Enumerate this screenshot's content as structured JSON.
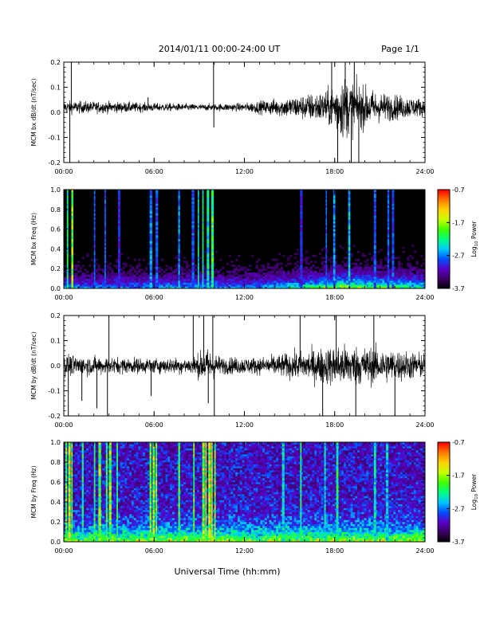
{
  "header": {
    "date_range": "2014/01/11  00:00-24:00 UT",
    "page": "Page 1/1"
  },
  "footer": {
    "xlabel": "Universal Time (hh:mm)"
  },
  "colorbar": {
    "label_prefix": "Log",
    "label_sub": "10",
    "label_suffix": " Power",
    "ticks": [
      "-0.7",
      "-1.7",
      "-2.7",
      "-3.7"
    ],
    "range": [
      -3.7,
      -0.7
    ],
    "colormap": [
      "#000000",
      "#3c0064",
      "#5a00c8",
      "#0050ff",
      "#00c8ff",
      "#00ff80",
      "#40ff00",
      "#c8ff00",
      "#ffd200",
      "#ff7800",
      "#ff0000"
    ]
  },
  "chart_data": [
    {
      "type": "line",
      "ylabel": "MCM bx dB/dt (nT/sec)",
      "xlim": [
        0,
        24
      ],
      "ylim": [
        -0.2,
        0.2
      ],
      "x_ticks": [
        "00:00",
        "06:00",
        "12:00",
        "18:00",
        "24:00"
      ],
      "y_ticks": [
        "-0.2",
        "-0.1",
        "0.0",
        "0.1",
        "0.2"
      ],
      "baseline": 0.02,
      "activity_envelope": [
        {
          "hour": 0,
          "amp": 0.03
        },
        {
          "hour": 4,
          "amp": 0.025
        },
        {
          "hour": 6,
          "amp": 0.02
        },
        {
          "hour": 9,
          "amp": 0.015
        },
        {
          "hour": 12,
          "amp": 0.02
        },
        {
          "hour": 14,
          "amp": 0.04
        },
        {
          "hour": 16,
          "amp": 0.06
        },
        {
          "hour": 17.5,
          "amp": 0.08
        },
        {
          "hour": 18.5,
          "amp": 0.15
        },
        {
          "hour": 19.5,
          "amp": 0.11
        },
        {
          "hour": 21,
          "amp": 0.07
        },
        {
          "hour": 24,
          "amp": 0.04
        }
      ],
      "spikes": [
        {
          "hour": 0.4,
          "value": -0.2
        },
        {
          "hour": 0.5,
          "value": 0.2
        },
        {
          "hour": 5.6,
          "value": 0.06
        },
        {
          "hour": 9.95,
          "value": 0.2
        },
        {
          "hour": 9.97,
          "value": -0.06
        },
        {
          "hour": 17.8,
          "value": 0.2
        },
        {
          "hour": 18.2,
          "value": -0.2
        },
        {
          "hour": 18.7,
          "value": 0.2
        },
        {
          "hour": 19.1,
          "value": -0.2
        },
        {
          "hour": 19.3,
          "value": 0.2
        },
        {
          "hour": 19.6,
          "value": -0.2
        }
      ]
    },
    {
      "type": "heatmap",
      "ylabel": "MCM bx Freq (Hz)",
      "xlim": [
        0,
        24
      ],
      "ylim": [
        0.0,
        1.0
      ],
      "x_ticks": [
        "00:00",
        "06:00",
        "12:00",
        "18:00",
        "24:00"
      ],
      "y_ticks": [
        "0.0",
        "0.2",
        "0.4",
        "0.6",
        "0.8",
        "1.0"
      ],
      "background_level": 0.0,
      "band_hours": [
        0.2,
        0.5,
        2.0,
        2.7,
        3.6,
        5.7,
        6.1,
        7.6,
        8.5,
        8.9,
        9.2,
        9.5,
        9.8,
        15.7,
        17.4,
        17.9,
        18.9,
        20.6,
        21.5,
        21.8
      ],
      "band_levels": [
        0.5,
        0.65,
        0.3,
        0.3,
        0.25,
        0.35,
        0.3,
        0.35,
        0.3,
        0.45,
        0.5,
        0.45,
        0.55,
        0.25,
        0.3,
        0.35,
        0.4,
        0.3,
        0.3,
        0.3
      ],
      "low_freq_activity": [
        {
          "hour": 0,
          "level": 0.3
        },
        {
          "hour": 10,
          "level": 0.35
        },
        {
          "hour": 12,
          "level": 0.3
        },
        {
          "hour": 16,
          "level": 0.45
        },
        {
          "hour": 18.5,
          "level": 0.6
        },
        {
          "hour": 24,
          "level": 0.45
        }
      ]
    },
    {
      "type": "line",
      "ylabel": "MCM by dB/dt (nT/sec)",
      "xlim": [
        0,
        24
      ],
      "ylim": [
        -0.2,
        0.2
      ],
      "x_ticks": [
        "00:00",
        "06:00",
        "12:00",
        "18:00",
        "24:00"
      ],
      "y_ticks": [
        "-0.2",
        "-0.1",
        "0.0",
        "0.1",
        "0.2"
      ],
      "baseline": 0.0,
      "activity_envelope": [
        {
          "hour": 0,
          "amp": 0.05
        },
        {
          "hour": 3,
          "amp": 0.04
        },
        {
          "hour": 6,
          "amp": 0.035
        },
        {
          "hour": 8.5,
          "amp": 0.04
        },
        {
          "hour": 9.5,
          "amp": 0.08
        },
        {
          "hour": 10.5,
          "amp": 0.04
        },
        {
          "hour": 13,
          "amp": 0.04
        },
        {
          "hour": 16,
          "amp": 0.07
        },
        {
          "hour": 18.5,
          "amp": 0.1
        },
        {
          "hour": 20,
          "amp": 0.09
        },
        {
          "hour": 24,
          "amp": 0.06
        }
      ],
      "spikes": [
        {
          "hour": 0.3,
          "value": -0.2
        },
        {
          "hour": 1.2,
          "value": -0.14
        },
        {
          "hour": 2.2,
          "value": -0.17
        },
        {
          "hour": 2.9,
          "value": -0.2
        },
        {
          "hour": 3.0,
          "value": 0.2
        },
        {
          "hour": 5.8,
          "value": -0.12
        },
        {
          "hour": 8.6,
          "value": 0.2
        },
        {
          "hour": 9.3,
          "value": 0.2
        },
        {
          "hour": 9.6,
          "value": -0.15
        },
        {
          "hour": 9.9,
          "value": 0.2
        },
        {
          "hour": 10.0,
          "value": -0.2
        },
        {
          "hour": 15.7,
          "value": 0.2
        },
        {
          "hour": 17.2,
          "value": -0.2
        },
        {
          "hour": 18.1,
          "value": 0.2
        },
        {
          "hour": 19.4,
          "value": -0.2
        },
        {
          "hour": 20.6,
          "value": 0.2
        },
        {
          "hour": 22.0,
          "value": -0.2
        }
      ]
    },
    {
      "type": "heatmap",
      "ylabel": "MCM by Freq (Hz)",
      "xlim": [
        0,
        24
      ],
      "ylim": [
        0.0,
        1.0
      ],
      "x_ticks": [
        "00:00",
        "06:00",
        "12:00",
        "18:00",
        "24:00"
      ],
      "y_ticks": [
        "0.0",
        "0.2",
        "0.4",
        "0.6",
        "0.8",
        "1.0"
      ],
      "background_level": 0.15,
      "band_hours": [
        0.1,
        0.3,
        0.5,
        1.2,
        2.0,
        2.3,
        2.8,
        3.0,
        3.5,
        5.7,
        5.9,
        6.1,
        7.6,
        8.6,
        9.2,
        9.4,
        9.6,
        9.8,
        10.0,
        14.5,
        15.7,
        17.3,
        18.1,
        20.6,
        21.4
      ],
      "band_levels": [
        0.6,
        0.7,
        0.6,
        0.5,
        0.55,
        0.6,
        0.55,
        0.6,
        0.5,
        0.6,
        0.65,
        0.6,
        0.55,
        0.6,
        0.65,
        0.7,
        0.7,
        0.7,
        0.65,
        0.45,
        0.5,
        0.45,
        0.5,
        0.45,
        0.4
      ],
      "low_freq_activity": [
        {
          "hour": 0,
          "level": 0.4
        },
        {
          "hour": 10,
          "level": 0.45
        },
        {
          "hour": 12,
          "level": 0.4
        },
        {
          "hour": 18,
          "level": 0.45
        },
        {
          "hour": 24,
          "level": 0.45
        }
      ]
    }
  ]
}
